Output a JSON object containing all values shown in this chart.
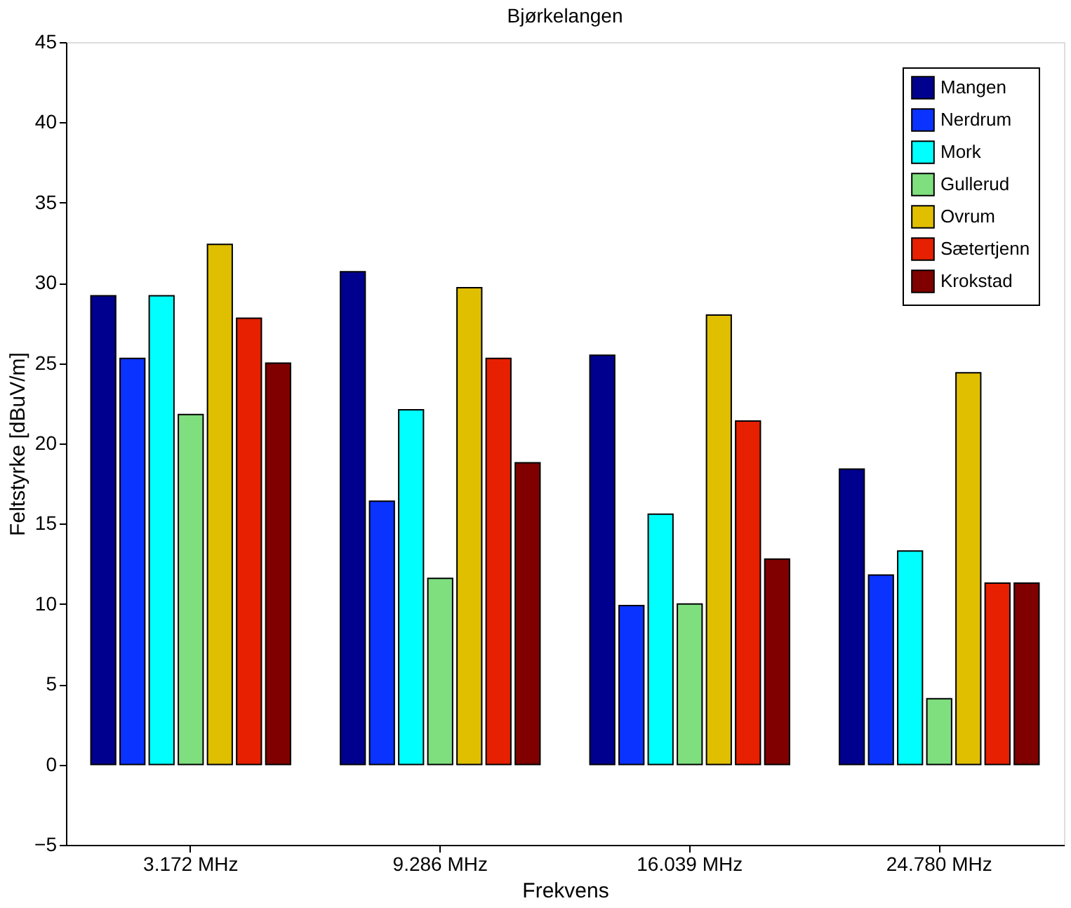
{
  "chart_data": {
    "type": "bar",
    "title": "Bjørkelangen",
    "xlabel": "Frekvens",
    "ylabel": "Feltstyrke [dBuV/m]",
    "categories": [
      "3.172 MHz",
      "9.286 MHz",
      "16.039 MHz",
      "24.780 MHz"
    ],
    "series": [
      {
        "name": "Mangen",
        "color": "#00008f",
        "values": [
          29.2,
          30.7,
          25.5,
          18.4
        ]
      },
      {
        "name": "Nerdrum",
        "color": "#0a33ff",
        "values": [
          25.3,
          16.4,
          9.9,
          11.8
        ]
      },
      {
        "name": "Mork",
        "color": "#00ffff",
        "values": [
          29.2,
          22.1,
          15.6,
          13.3
        ]
      },
      {
        "name": "Gullerud",
        "color": "#7fdf7f",
        "values": [
          21.8,
          11.6,
          10.0,
          4.1
        ]
      },
      {
        "name": "Ovrum",
        "color": "#e0bf00",
        "values": [
          32.4,
          29.7,
          28.0,
          24.4
        ]
      },
      {
        "name": "Sætertjenn",
        "color": "#e62000",
        "values": [
          27.8,
          25.3,
          21.4,
          11.3
        ]
      },
      {
        "name": "Krokstad",
        "color": "#800000",
        "values": [
          25.0,
          18.8,
          12.8,
          11.3
        ]
      }
    ],
    "ylim": [
      -5,
      45
    ],
    "yticks": [
      -5,
      0,
      5,
      10,
      15,
      20,
      25,
      30,
      35,
      40,
      45
    ],
    "grid": false,
    "legend": "top right"
  }
}
